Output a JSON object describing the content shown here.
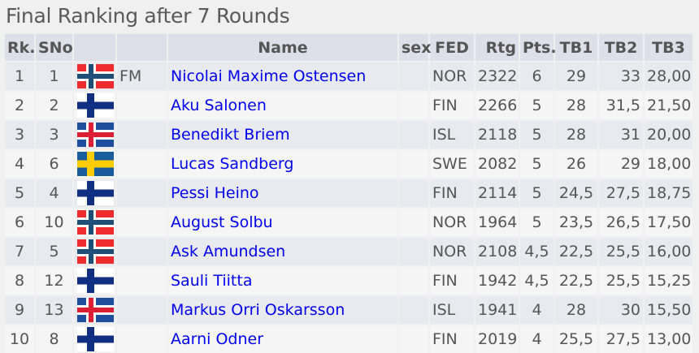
{
  "title": "Final Ranking after 7 Rounds",
  "columns": [
    "Rk.",
    "SNo",
    "",
    "",
    "Name",
    "sex",
    "FED",
    "Rtg",
    "Pts.",
    "TB1",
    "TB2",
    "TB3"
  ],
  "colors": {
    "link": "#0000ee",
    "header_bg": "#dde0e8"
  },
  "rows": [
    {
      "rk": "1",
      "sno": "1",
      "flag": "NOR",
      "title": "FM",
      "name": "Nicolai Maxime Ostensen",
      "sex": "",
      "fed": "NOR",
      "rtg": "2322",
      "pts": "6",
      "tb1": "29",
      "tb2": "33",
      "tb3": "28,00"
    },
    {
      "rk": "2",
      "sno": "2",
      "flag": "FIN",
      "title": "",
      "name": "Aku Salonen",
      "sex": "",
      "fed": "FIN",
      "rtg": "2266",
      "pts": "5",
      "tb1": "28",
      "tb2": "31,5",
      "tb3": "21,50"
    },
    {
      "rk": "3",
      "sno": "3",
      "flag": "ISL",
      "title": "",
      "name": "Benedikt Briem",
      "sex": "",
      "fed": "ISL",
      "rtg": "2118",
      "pts": "5",
      "tb1": "28",
      "tb2": "31",
      "tb3": "20,00"
    },
    {
      "rk": "4",
      "sno": "6",
      "flag": "SWE",
      "title": "",
      "name": "Lucas Sandberg",
      "sex": "",
      "fed": "SWE",
      "rtg": "2082",
      "pts": "5",
      "tb1": "26",
      "tb2": "29",
      "tb3": "18,00"
    },
    {
      "rk": "5",
      "sno": "4",
      "flag": "FIN",
      "title": "",
      "name": "Pessi Heino",
      "sex": "",
      "fed": "FIN",
      "rtg": "2114",
      "pts": "5",
      "tb1": "24,5",
      "tb2": "27,5",
      "tb3": "18,75"
    },
    {
      "rk": "6",
      "sno": "10",
      "flag": "NOR",
      "title": "",
      "name": "August Solbu",
      "sex": "",
      "fed": "NOR",
      "rtg": "1964",
      "pts": "5",
      "tb1": "23,5",
      "tb2": "26,5",
      "tb3": "17,50"
    },
    {
      "rk": "7",
      "sno": "5",
      "flag": "NOR",
      "title": "",
      "name": "Ask Amundsen",
      "sex": "",
      "fed": "NOR",
      "rtg": "2108",
      "pts": "4,5",
      "tb1": "22,5",
      "tb2": "25,5",
      "tb3": "16,00"
    },
    {
      "rk": "8",
      "sno": "12",
      "flag": "FIN",
      "title": "",
      "name": "Sauli Tiitta",
      "sex": "",
      "fed": "FIN",
      "rtg": "1942",
      "pts": "4,5",
      "tb1": "22,5",
      "tb2": "25,5",
      "tb3": "15,25"
    },
    {
      "rk": "9",
      "sno": "13",
      "flag": "ISL",
      "title": "",
      "name": "Markus Orri Oskarsson",
      "sex": "",
      "fed": "ISL",
      "rtg": "1941",
      "pts": "4",
      "tb1": "28",
      "tb2": "30",
      "tb3": "15,50"
    },
    {
      "rk": "10",
      "sno": "8",
      "flag": "FIN",
      "title": "",
      "name": "Aarni Odner",
      "sex": "",
      "fed": "FIN",
      "rtg": "2019",
      "pts": "4",
      "tb1": "25,5",
      "tb2": "27,5",
      "tb3": "13,00"
    }
  ]
}
